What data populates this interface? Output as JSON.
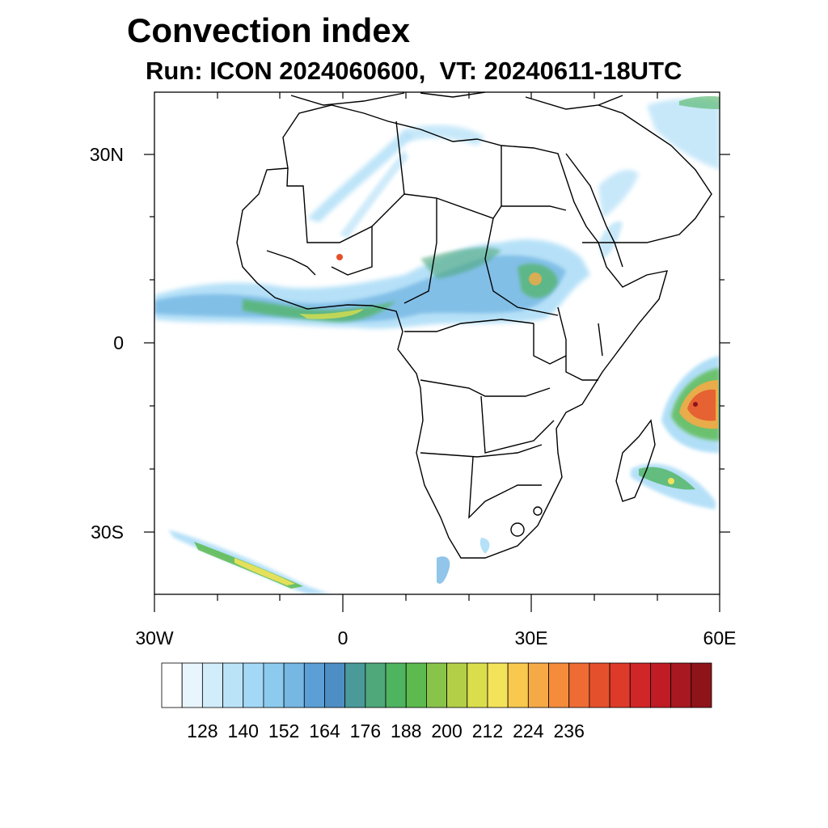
{
  "title": "Convection index",
  "subtitle": "Run: ICON 2024060600,  VT: 20240611-18UTC",
  "map": {
    "extent": {
      "lon": [
        -30,
        60
      ],
      "lat": [
        -40,
        40
      ]
    },
    "lat_labels": [
      {
        "lat": 30,
        "text": "30N"
      },
      {
        "lat": 0,
        "text": "0"
      },
      {
        "lat": -30,
        "text": "30S"
      }
    ],
    "lon_labels": [
      {
        "lon": -30,
        "text": "30W"
      },
      {
        "lon": 0,
        "text": "0"
      },
      {
        "lon": 30,
        "text": "30E"
      },
      {
        "lon": 60,
        "text": "60E"
      }
    ]
  },
  "colorbar": {
    "colors": [
      "#ffffff",
      "#e8f5fc",
      "#d1ecfa",
      "#bbe3f8",
      "#a3d9f6",
      "#8ccbee",
      "#76b7e4",
      "#5c9fd6",
      "#4d8ec4",
      "#4a9a9a",
      "#4ea87a",
      "#4fb460",
      "#5cba4e",
      "#89c44a",
      "#b3cf48",
      "#dade4c",
      "#f3e35a",
      "#f8c94e",
      "#f6aa46",
      "#f48c3c",
      "#ee6c33",
      "#e5502c",
      "#dd3a2a",
      "#d02628",
      "#bf1c25",
      "#a81820",
      "#8f141a"
    ],
    "labels": [
      "128",
      "140",
      "152",
      "164",
      "176",
      "188",
      "200",
      "212",
      "224",
      "236"
    ]
  },
  "field_note_colors": {
    "coast": "#000000",
    "border": "#000000"
  }
}
